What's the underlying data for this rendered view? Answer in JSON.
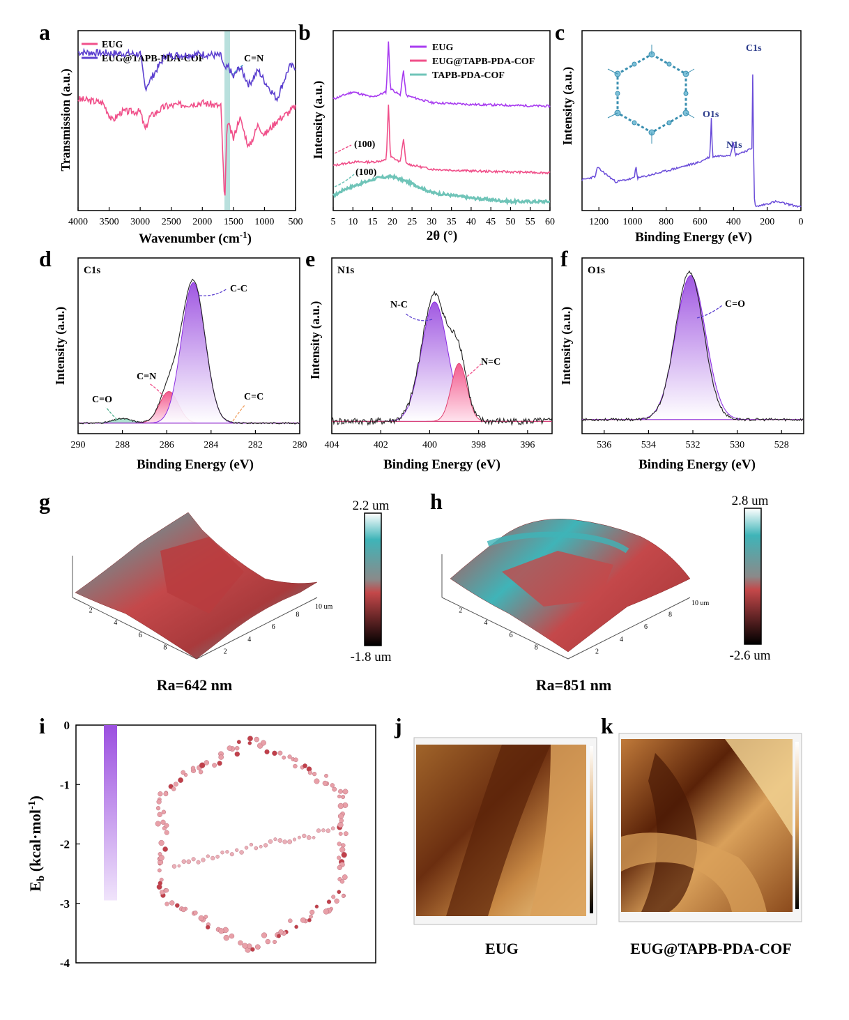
{
  "colors": {
    "purple": "#8a2be2",
    "violet_ftir": "#5b3fcf",
    "pink": "#f0508a",
    "teal": "#6fc4b8",
    "xps_line": "#6a4cd9",
    "afm_red": "#c4484a",
    "afm_cyan": "#3fb4b8",
    "afm_brown": "#8b4a1c",
    "afm_gold": "#d9a05a"
  },
  "panels": {
    "a": {
      "letter": "a",
      "ylabel": "Transmission (a.u.)",
      "xlabel_main": "Wavenumber (cm",
      "xlabel_sup": "-1",
      "xlabel_end": ")",
      "legend": [
        "EUG",
        "EUG@TAPB-PDA-COF"
      ],
      "annotation": "C=N",
      "xticks": [
        "4000",
        "3500",
        "3000",
        "2500",
        "2000",
        "1500",
        "1000",
        "500"
      ]
    },
    "b": {
      "letter": "b",
      "ylabel": "Intensity (a.u.)",
      "xlabel": "2θ (°)",
      "legend": [
        "EUG",
        "EUG@TAPB-PDA-COF",
        "TAPB-PDA-COF"
      ],
      "annotation_1": "(100)",
      "annotation_2": "(100)",
      "xticks": [
        "5",
        "10",
        "15",
        "20",
        "25",
        "30",
        "35",
        "40",
        "45",
        "50",
        "55",
        "60"
      ]
    },
    "c": {
      "letter": "c",
      "ylabel": "Intensity (a.u.)",
      "xlabel": "Binding Energy (eV)",
      "peaks": [
        "C1s",
        "O1s",
        "N1s"
      ],
      "xticks": [
        "1200",
        "1000",
        "800",
        "600",
        "400",
        "200",
        "0"
      ]
    },
    "d": {
      "letter": "d",
      "title": "C1s",
      "ylabel": "Intensity (a.u.)",
      "xlabel": "Binding Energy (eV)",
      "labels": [
        "C-C",
        "C=N",
        "C=O",
        "C=C"
      ],
      "xticks": [
        "290",
        "288",
        "286",
        "284",
        "282",
        "280"
      ]
    },
    "e": {
      "letter": "e",
      "title": "N1s",
      "ylabel": "Intensity (a.u.)",
      "xlabel": "Binding Energy (eV)",
      "labels": [
        "N-C",
        "N=C"
      ],
      "xticks": [
        "404",
        "402",
        "400",
        "398",
        "396"
      ]
    },
    "f": {
      "letter": "f",
      "title": "O1s",
      "ylabel": "Intensity (a.u.)",
      "xlabel": "Binding Energy (eV)",
      "labels": [
        "C=O"
      ],
      "xticks": [
        "536",
        "534",
        "532",
        "530",
        "528"
      ]
    },
    "g": {
      "letter": "g",
      "cbar_top": "2.2 um",
      "cbar_bottom": "-1.8 um",
      "caption": "Ra=642 nm",
      "axis_unit": "10 um",
      "ticks": [
        "2",
        "4",
        "6",
        "8"
      ]
    },
    "h": {
      "letter": "h",
      "cbar_top": "2.8 um",
      "cbar_bottom": "-2.6 um",
      "caption": "Ra=851 nm",
      "axis_unit": "10 um",
      "ticks": [
        "2",
        "4",
        "6",
        "8"
      ]
    },
    "i": {
      "letter": "i",
      "ylabel_main": "E",
      "ylabel_sub": "b",
      "ylabel_unit": " (kcal·mol",
      "ylabel_sup": "-1",
      "ylabel_end": ")",
      "yticks": [
        "0",
        "-1",
        "-2",
        "-3",
        "-4"
      ],
      "bar_value": -2.95
    },
    "j": {
      "letter": "j",
      "caption": "EUG"
    },
    "k": {
      "letter": "k",
      "caption": "EUG@TAPB-PDA-COF"
    }
  },
  "chart_data": [
    {
      "panel": "a",
      "type": "line",
      "xlabel": "Wavenumber (cm-1)",
      "ylabel": "Transmission (a.u.)",
      "xlim": [
        4000,
        500
      ],
      "series": [
        {
          "name": "EUG",
          "x": [
            4000,
            3600,
            3450,
            3300,
            3000,
            2920,
            2850,
            2600,
            2000,
            1700,
            1640,
            1600,
            1500,
            1400,
            1250,
            1100,
            1000,
            800,
            600,
            500
          ],
          "y": [
            0.62,
            0.6,
            0.5,
            0.55,
            0.55,
            0.45,
            0.52,
            0.58,
            0.6,
            0.58,
            0.02,
            0.5,
            0.4,
            0.52,
            0.35,
            0.48,
            0.42,
            0.5,
            0.55,
            0.58
          ]
        },
        {
          "name": "EUG@TAPB-PDA-COF",
          "x": [
            4000,
            3000,
            2920,
            2850,
            2600,
            2000,
            1700,
            1640,
            1580,
            1500,
            1400,
            1250,
            1100,
            1000,
            800,
            600,
            500
          ],
          "y": [
            0.88,
            0.87,
            0.68,
            0.72,
            0.86,
            0.87,
            0.86,
            0.78,
            0.8,
            0.74,
            0.8,
            0.7,
            0.78,
            0.72,
            0.62,
            0.8,
            0.8
          ]
        }
      ]
    },
    {
      "panel": "b",
      "type": "line",
      "xlabel": "2θ (°)",
      "ylabel": "Intensity (a.u.)",
      "xlim": [
        5,
        60
      ],
      "series": [
        {
          "name": "EUG",
          "x": [
            5,
            10,
            15,
            18.5,
            19,
            19.5,
            22,
            22.8,
            23.5,
            30,
            40,
            60
          ],
          "y": [
            0.62,
            0.66,
            0.63,
            0.66,
            0.95,
            0.68,
            0.64,
            0.78,
            0.64,
            0.6,
            0.59,
            0.58
          ]
        },
        {
          "name": "EUG@TAPB-PDA-COF",
          "x": [
            5,
            10,
            15,
            18.5,
            19,
            19.5,
            22,
            22.8,
            23.5,
            30,
            40,
            60
          ],
          "y": [
            0.25,
            0.27,
            0.27,
            0.28,
            0.6,
            0.3,
            0.27,
            0.4,
            0.26,
            0.23,
            0.22,
            0.21
          ]
        },
        {
          "name": "TAPB-PDA-COF",
          "x": [
            5,
            8,
            12,
            16,
            20,
            25,
            30,
            40,
            50,
            60
          ],
          "y": [
            0.08,
            0.12,
            0.15,
            0.18,
            0.19,
            0.15,
            0.1,
            0.07,
            0.05,
            0.05
          ]
        }
      ]
    },
    {
      "panel": "c",
      "type": "line",
      "xlabel": "Binding Energy (eV)",
      "ylabel": "Intensity (a.u.)",
      "xlim": [
        1300,
        0
      ],
      "series": [
        {
          "x": [
            1300,
            1220,
            1210,
            1100,
            990,
            980,
            970,
            800,
            600,
            540,
            532,
            525,
            420,
            400,
            390,
            300,
            290,
            284,
            280,
            270,
            150,
            100,
            0
          ],
          "y": [
            0.17,
            0.19,
            0.24,
            0.16,
            0.18,
            0.25,
            0.18,
            0.22,
            0.27,
            0.3,
            0.52,
            0.3,
            0.31,
            0.38,
            0.31,
            0.34,
            0.35,
            0.98,
            0.1,
            0.02,
            0.05,
            0.04,
            0.02
          ]
        }
      ]
    },
    {
      "panel": "d",
      "type": "line",
      "xlabel": "Binding Energy (eV)",
      "xlim": [
        290,
        280
      ],
      "components": [
        {
          "name": "C-C",
          "center": 284.8,
          "height": 0.95
        },
        {
          "name": "C=N",
          "center": 285.9,
          "height": 0.18
        },
        {
          "name": "C=O",
          "center": 288.0,
          "height": 0.03
        },
        {
          "name": "C=C",
          "center": 283.0,
          "height": 0.0
        }
      ]
    },
    {
      "panel": "e",
      "type": "line",
      "xlabel": "Binding Energy (eV)",
      "xlim": [
        404,
        395
      ],
      "components": [
        {
          "name": "N-C",
          "center": 399.8,
          "height": 0.85
        },
        {
          "name": "N=C",
          "center": 398.8,
          "height": 0.38
        }
      ]
    },
    {
      "panel": "f",
      "type": "line",
      "xlabel": "Binding Energy (eV)",
      "xlim": [
        537,
        527
      ],
      "components": [
        {
          "name": "C=O",
          "center": 532.1,
          "height": 0.9
        }
      ]
    },
    {
      "panel": "i",
      "type": "bar",
      "ylabel": "Eb (kcal·mol-1)",
      "ylim": [
        -4,
        0
      ],
      "values": [
        -2.95
      ]
    }
  ]
}
